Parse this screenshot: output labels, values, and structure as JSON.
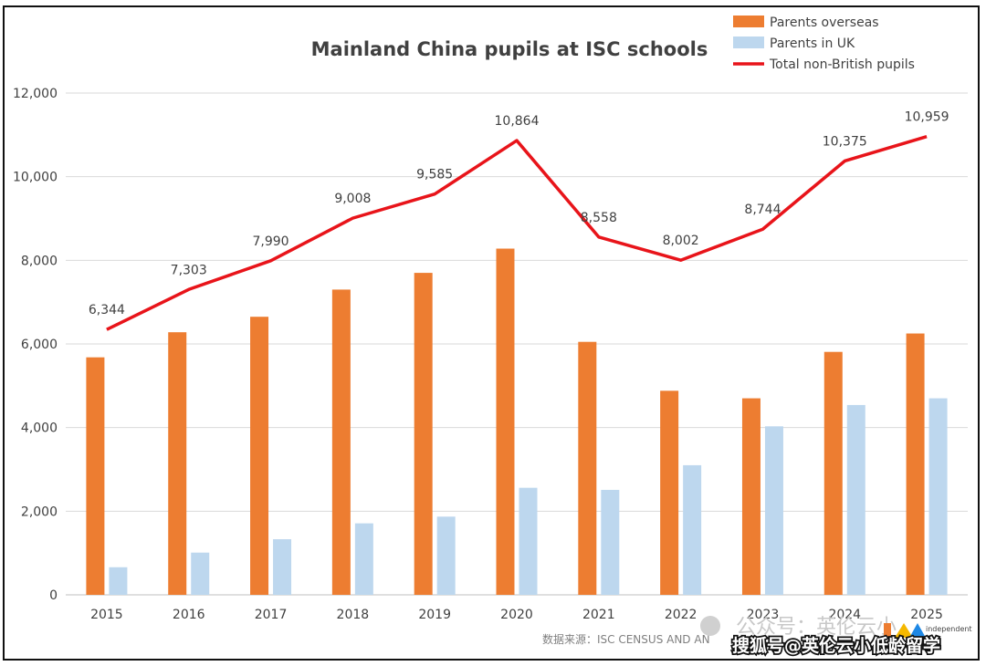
{
  "chart_data": {
    "type": "bar",
    "title": "Mainland China pupils at ISC schools",
    "categories": [
      "2015",
      "2016",
      "2017",
      "2018",
      "2019",
      "2020",
      "2021",
      "2022",
      "2023",
      "2024",
      "2025"
    ],
    "series": [
      {
        "name": "Parents overseas",
        "type": "bar",
        "color": "#ED7D31",
        "values": [
          5680,
          6280,
          6650,
          7300,
          7700,
          8280,
          6050,
          4880,
          4700,
          5810,
          6250
        ]
      },
      {
        "name": "Parents in UK",
        "type": "bar",
        "color": "#BDD7EE",
        "values": [
          660,
          1010,
          1330,
          1710,
          1870,
          2560,
          2510,
          3100,
          4030,
          4540,
          4700
        ]
      },
      {
        "name": "Total non-British pupils",
        "type": "line",
        "color": "#E8141A",
        "values": [
          6344,
          7303,
          7990,
          9008,
          9585,
          10864,
          8558,
          8002,
          8744,
          10375,
          10959
        ],
        "labels": [
          "6,344",
          "7,303",
          "7,990",
          "9,008",
          "9,585",
          "10,864",
          "8,558",
          "8,002",
          "8,744",
          "10,375",
          "10,959"
        ]
      }
    ],
    "ylim": [
      0,
      12000
    ],
    "yticks": [
      0,
      2000,
      4000,
      6000,
      8000,
      10000,
      12000
    ],
    "ytick_labels": [
      "0",
      "2,000",
      "4,000",
      "6,000",
      "8,000",
      "10,000",
      "12,000"
    ],
    "grid": true,
    "legend_position": "top-right"
  },
  "source_text": "数据来源：ISC CENSUS AND AN",
  "watermark_text": "公众号：英伦云小",
  "watermark2_text": "搜狐号@英伦云小低龄留学",
  "logo_text": "independent"
}
